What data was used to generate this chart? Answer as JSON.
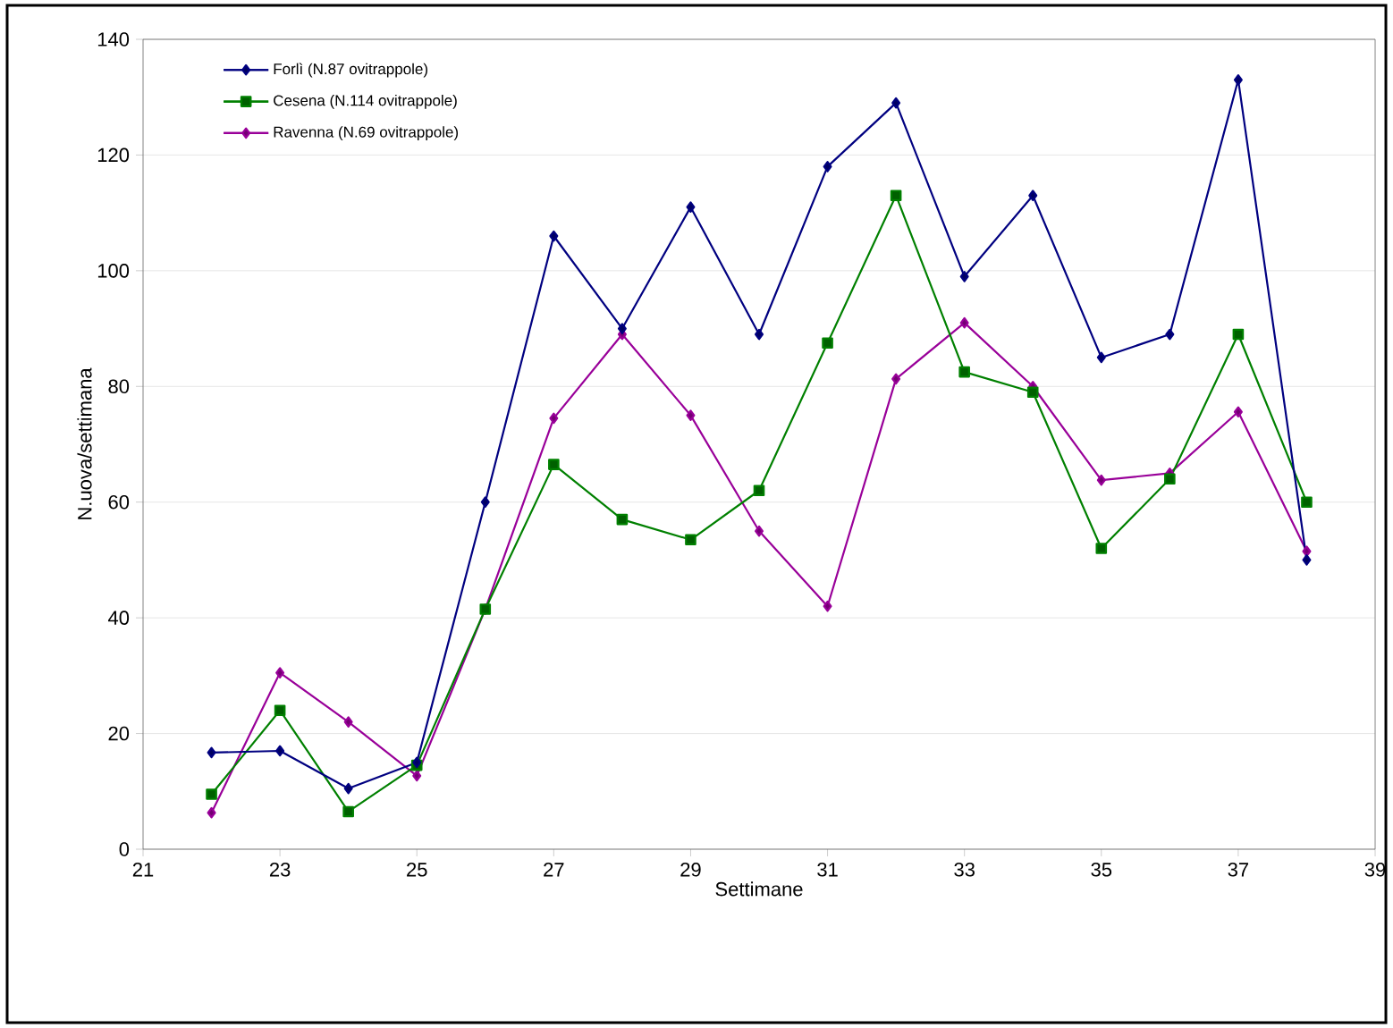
{
  "chart_data": {
    "type": "line",
    "xlabel": "Settimane",
    "ylabel": "N.uova/settimana",
    "x": [
      22,
      23,
      24,
      25,
      26,
      27,
      28,
      29,
      30,
      31,
      32,
      33,
      34,
      35,
      36,
      37,
      38
    ],
    "series": [
      {
        "name": "Forlì (N.87 ovitrappole)",
        "color": "#000080",
        "marker": "diamond",
        "values": [
          16.7,
          17,
          10.5,
          15,
          60,
          106,
          90,
          111,
          89,
          118,
          129,
          99,
          113,
          85,
          89,
          133,
          50
        ]
      },
      {
        "name": "Cesena (N.114 ovitrappole)",
        "color": "#008000",
        "marker": "square",
        "values": [
          9.5,
          24,
          6.5,
          14.5,
          41.5,
          66.5,
          57,
          53.5,
          62,
          87.5,
          113,
          82.5,
          79,
          52,
          64,
          89,
          60
        ]
      },
      {
        "name": "Ravenna (N.69 ovitrappole)",
        "color": "#990099",
        "marker": "diamond",
        "values": [
          6.3,
          30.5,
          22,
          12.7,
          41.5,
          74.5,
          89,
          75,
          55,
          42,
          81.3,
          91,
          80,
          63.8,
          65,
          75.6,
          51.5
        ]
      }
    ],
    "xlim": [
      21,
      39
    ],
    "xticks": [
      21,
      23,
      25,
      27,
      29,
      31,
      33,
      35,
      37,
      39
    ],
    "ylim": [
      0,
      140
    ],
    "yticks": [
      0,
      20,
      40,
      60,
      80,
      100,
      120,
      140
    ],
    "grid": "y",
    "legend": "top left",
    "line_style": "solid"
  }
}
